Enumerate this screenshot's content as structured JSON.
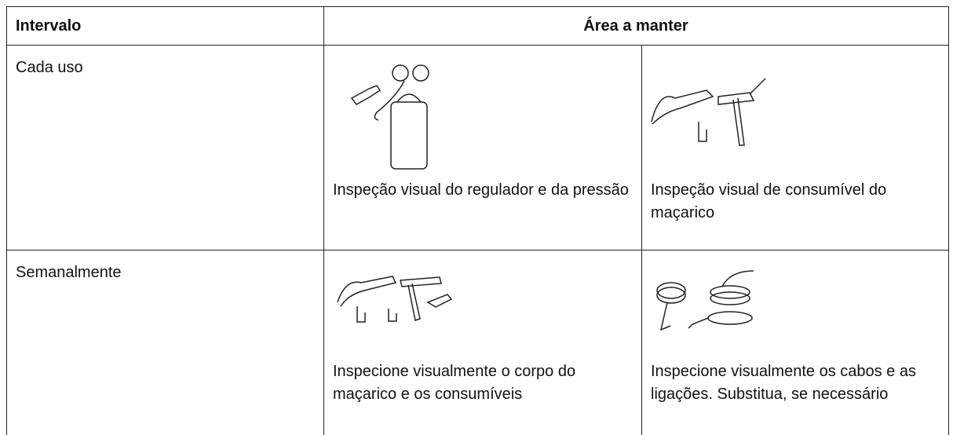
{
  "header": {
    "interval": "Intervalo",
    "area": "Área a manter"
  },
  "rows": [
    {
      "interval": "Cada uso",
      "items": [
        "Inspeção visual do regulador e da pressão",
        "Inspeção visual de consumível do maçarico"
      ]
    },
    {
      "interval": "Semanalmente",
      "items": [
        "Inspecione visualmente o corpo do maçarico e os consumíveis",
        "Inspecione visualmente os cabos e as ligações. Substitua, se necessário"
      ]
    }
  ]
}
